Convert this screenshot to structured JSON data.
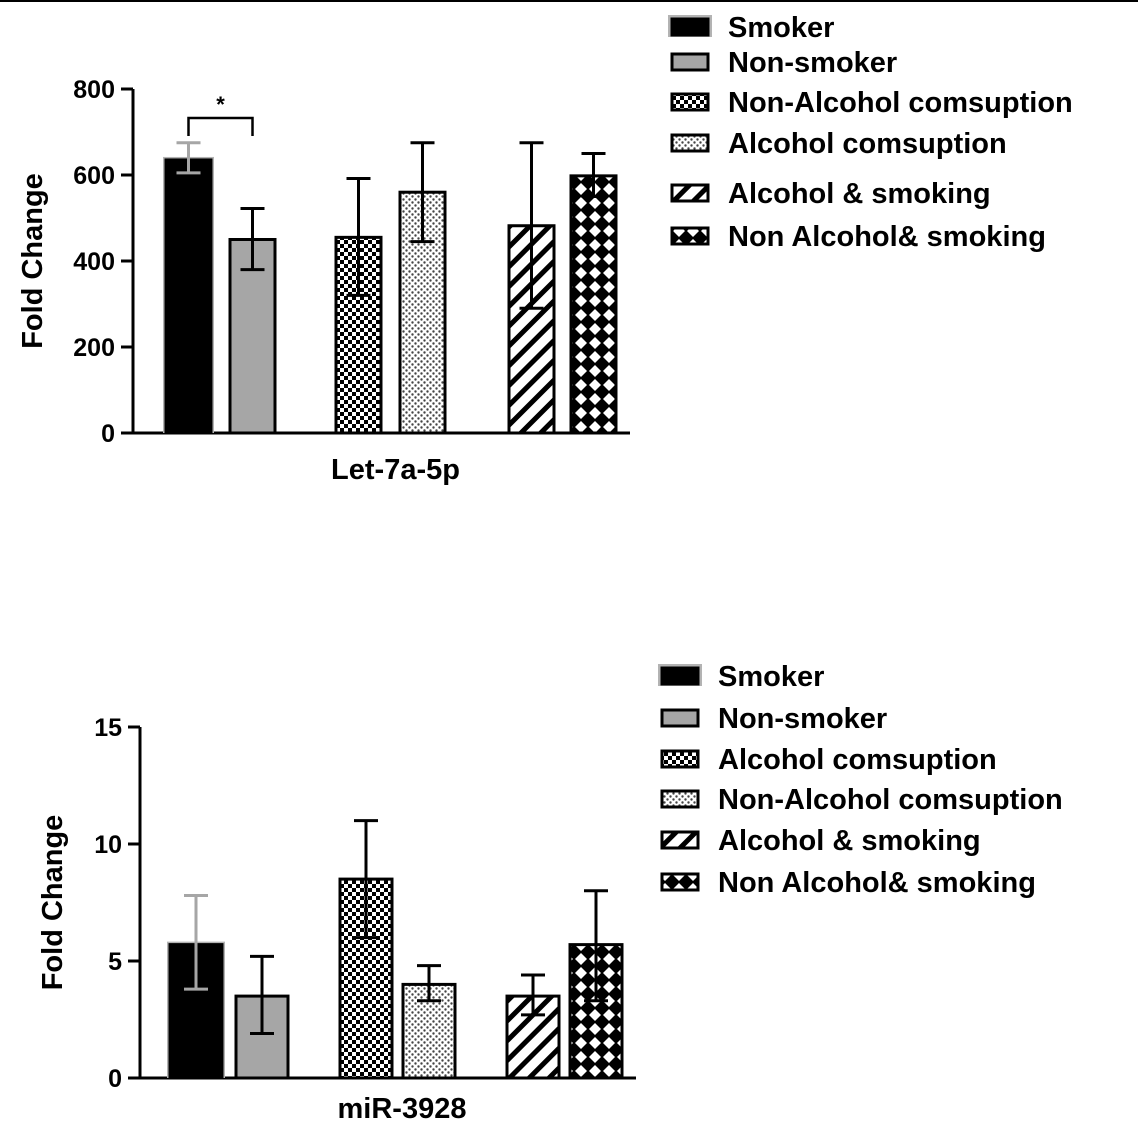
{
  "chart_data": [
    {
      "type": "bar",
      "categories": [
        "Let-7a-5p"
      ],
      "xlabel": "Let-7a-5p",
      "ylabel": "Fold Change",
      "ylim": [
        0,
        800
      ],
      "yticks": [
        "0",
        "200",
        "400",
        "600",
        "800"
      ],
      "grid": false,
      "legend_position": "top-right",
      "series": [
        {
          "name": "Smoker",
          "pattern": "solid-black",
          "value": 635,
          "err_low": 605,
          "err_high": 675
        },
        {
          "name": "Non-smoker",
          "pattern": "solid-gray",
          "value": 450,
          "err_low": 380,
          "err_high": 522
        },
        {
          "name": "Non-Alcohol comsuption",
          "pattern": "fine-checker",
          "value": 455,
          "err_low": 320,
          "err_high": 592
        },
        {
          "name": "Alcohol comsuption",
          "pattern": "dotted",
          "value": 560,
          "err_low": 445,
          "err_high": 675
        },
        {
          "name": "Alcohol & smoking",
          "pattern": "diagonal",
          "value": 482,
          "err_low": 290,
          "err_high": 675
        },
        {
          "name": "Non Alcohol& smoking",
          "pattern": "diamond",
          "value": 598,
          "err_low": 550,
          "err_high": 650
        }
      ],
      "legend": [
        "Smoker",
        "Non-smoker",
        "Non-Alcohol comsuption",
        "Alcohol comsuption",
        "Alcohol & smoking",
        "Non Alcohol& smoking"
      ],
      "annotations": [
        {
          "text": "*",
          "between": [
            "Smoker",
            "Non-smoker"
          ]
        }
      ]
    },
    {
      "type": "bar",
      "categories": [
        "miR-3928"
      ],
      "xlabel": "miR-3928",
      "ylabel": "Fold Change",
      "ylim": [
        0,
        15
      ],
      "yticks": [
        "0",
        "5",
        "10",
        "15"
      ],
      "grid": false,
      "legend_position": "top-right",
      "series": [
        {
          "name": "Smoker",
          "pattern": "solid-black",
          "value": 5.7,
          "err_low": 3.8,
          "err_high": 7.8
        },
        {
          "name": "Non-smoker",
          "pattern": "solid-gray",
          "value": 3.5,
          "err_low": 1.9,
          "err_high": 5.2
        },
        {
          "name": "Alcohol comsuption",
          "pattern": "fine-checker",
          "value": 8.5,
          "err_low": 6.0,
          "err_high": 11.0
        },
        {
          "name": "Non-Alcohol comsuption",
          "pattern": "dotted",
          "value": 4.0,
          "err_low": 3.3,
          "err_high": 4.8
        },
        {
          "name": "Alcohol & smoking",
          "pattern": "diagonal",
          "value": 3.5,
          "err_low": 2.7,
          "err_high": 4.4
        },
        {
          "name": "Non Alcohol& smoking",
          "pattern": "diamond",
          "value": 5.7,
          "err_low": 3.3,
          "err_high": 8.0
        }
      ],
      "legend": [
        "Smoker",
        "Non-smoker",
        "Alcohol comsuption",
        "Non-Alcohol comsuption",
        "Alcohol & smoking",
        "Non Alcohol& smoking"
      ],
      "annotations": []
    }
  ],
  "colors": {
    "black": "#000000",
    "gray": "#a6a6a6",
    "halo": "#b3b3b3",
    "white": "#ffffff"
  }
}
